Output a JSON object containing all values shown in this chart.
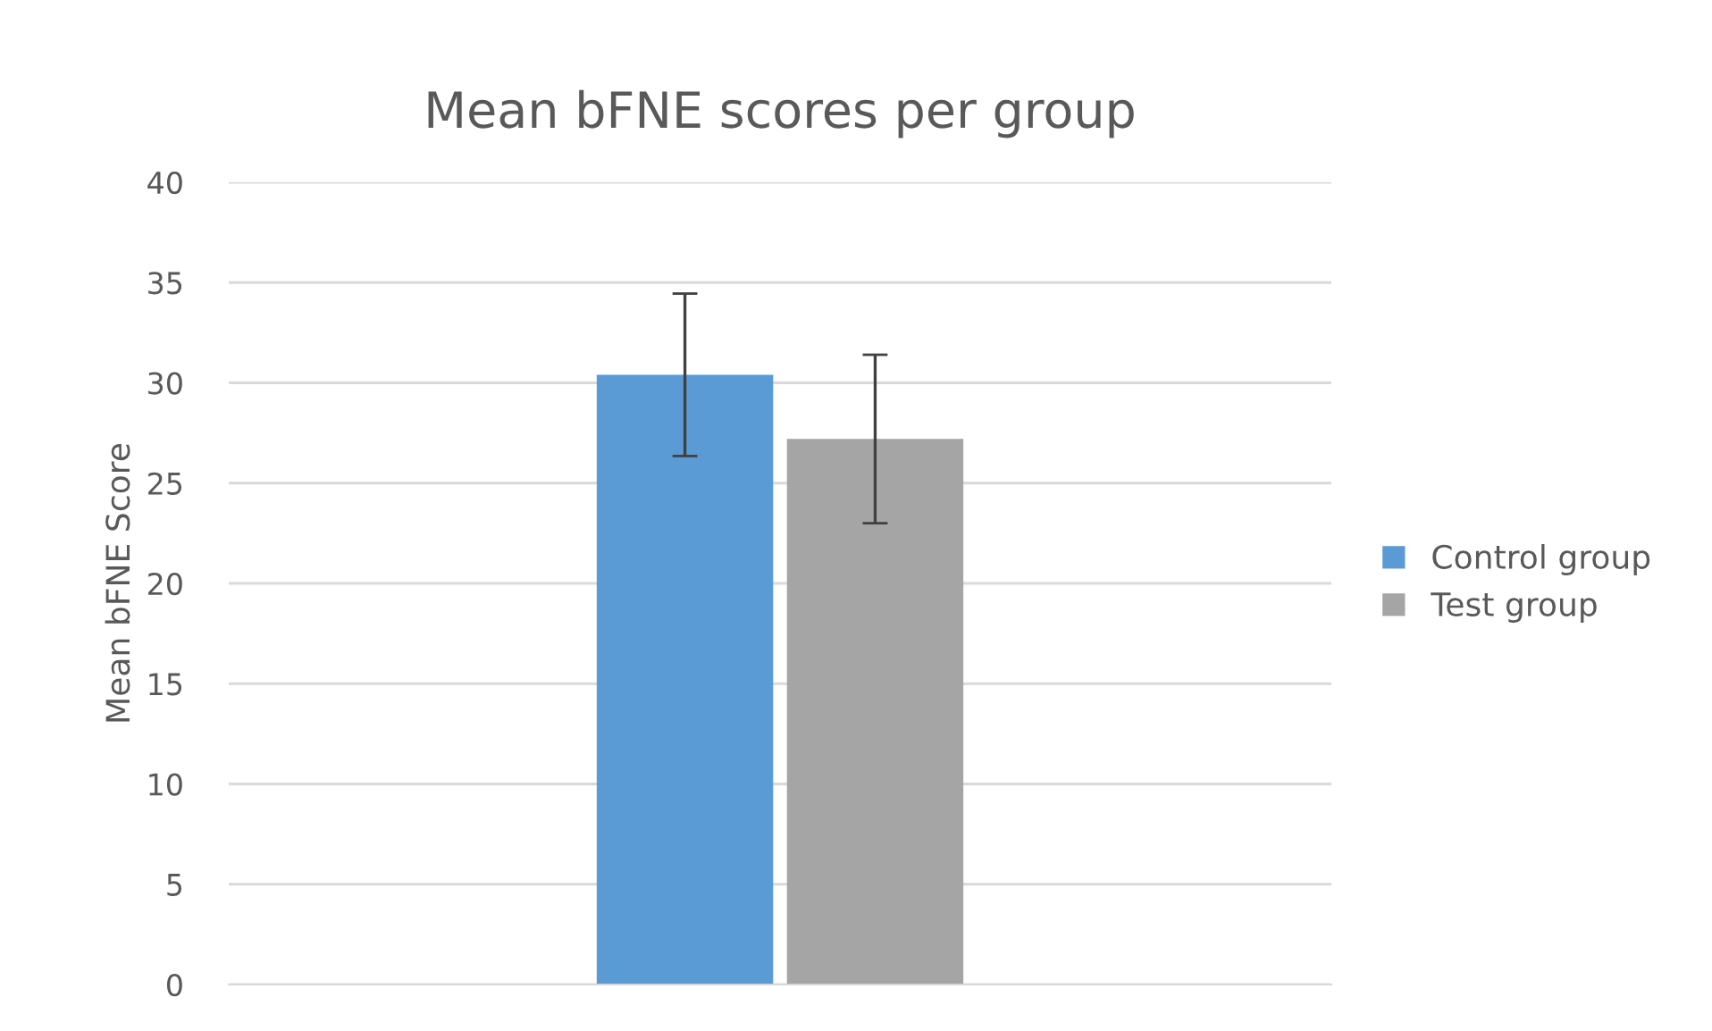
{
  "chart_data": {
    "type": "bar",
    "title": "Mean bFNE scores per group",
    "ylabel": "Mean bFNE Score",
    "categories": [
      null
    ],
    "series": [
      {
        "name": "Control group",
        "color": "#5b9bd5",
        "values": [
          30.4
        ],
        "errors": [
          4.05
        ]
      },
      {
        "name": "Test group",
        "color": "#a5a5a5",
        "values": [
          27.2
        ],
        "errors": [
          4.2
        ]
      }
    ],
    "ylim": [
      0,
      40
    ],
    "yticks": [
      0,
      5,
      10,
      15,
      20,
      25,
      30,
      35,
      40
    ],
    "grid": "y",
    "legend": "right"
  }
}
